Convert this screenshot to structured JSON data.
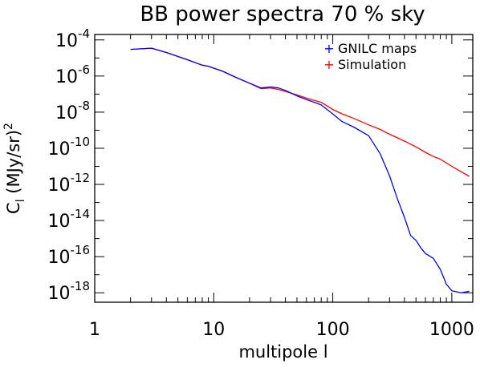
{
  "chart_data": {
    "type": "line",
    "title": "BB power spectra 70 % sky",
    "xlabel": "multipole l",
    "ylabel": "C_l (MJy/sr)^2",
    "x_scale": "log",
    "y_scale": "log",
    "xlim": [
      1,
      1500
    ],
    "ylim": [
      3e-19,
      0.0002
    ],
    "x_ticks": [
      {
        "value": 1,
        "label": "1"
      },
      {
        "value": 10,
        "label": "10"
      },
      {
        "value": 100,
        "label": "100"
      },
      {
        "value": 1000,
        "label": "1000"
      }
    ],
    "y_ticks": [
      {
        "value": 1e-18,
        "mantissa": "10",
        "exp": "-18"
      },
      {
        "value": 1e-16,
        "mantissa": "10",
        "exp": "-16"
      },
      {
        "value": 1e-14,
        "mantissa": "10",
        "exp": "-14"
      },
      {
        "value": 1e-12,
        "mantissa": "10",
        "exp": "-12"
      },
      {
        "value": 1e-10,
        "mantissa": "10",
        "exp": "-10"
      },
      {
        "value": 1e-08,
        "mantissa": "10",
        "exp": "-8"
      },
      {
        "value": 1e-06,
        "mantissa": "10",
        "exp": "-6"
      },
      {
        "value": 0.0001,
        "mantissa": "10",
        "exp": "-4"
      }
    ],
    "grid": false,
    "legend_position": "top-right",
    "series": [
      {
        "name": "GNILC maps",
        "color": "#0000ff",
        "x": [
          2,
          3,
          4,
          6,
          8,
          9,
          12,
          15,
          20,
          25,
          30,
          35,
          40,
          50,
          60,
          70,
          80,
          100,
          120,
          150,
          200,
          250,
          300,
          350,
          400,
          450,
          500,
          550,
          600,
          700,
          800,
          900,
          1000,
          1200,
          1400
        ],
        "y": [
          3e-05,
          3.5e-05,
          2e-05,
          8e-06,
          4e-06,
          3.5e-06,
          1.8e-06,
          9e-07,
          4e-07,
          2.2e-07,
          2.5e-07,
          2.2e-07,
          1.6e-07,
          8e-08,
          5e-08,
          3.5e-08,
          2.5e-08,
          8e-09,
          3e-09,
          1.5e-09,
          5e-10,
          5e-11,
          3e-12,
          1.5e-13,
          1.5e-14,
          1.5e-15,
          8e-16,
          3e-16,
          1.5e-16,
          8e-17,
          2e-17,
          3e-18,
          1.3e-18,
          1e-18,
          1.2e-18
        ]
      },
      {
        "name": "Simulation",
        "color": "#ff0000",
        "x": [
          2,
          3,
          4,
          6,
          8,
          9,
          12,
          15,
          20,
          25,
          30,
          35,
          40,
          50,
          60,
          70,
          80,
          100,
          120,
          150,
          200,
          250,
          300,
          400,
          500,
          600,
          700,
          800,
          1000,
          1200,
          1400
        ],
        "y": [
          3e-05,
          3.5e-05,
          2e-05,
          8e-06,
          4e-06,
          3.5e-06,
          1.8e-06,
          9e-07,
          4e-07,
          2e-07,
          2.2e-07,
          1.8e-07,
          1.4e-07,
          9e-08,
          6e-08,
          4.5e-08,
          3.5e-08,
          1.4e-08,
          8e-09,
          4.5e-09,
          2e-09,
          1.1e-09,
          6e-10,
          2.5e-10,
          1.2e-10,
          6e-11,
          3.5e-11,
          2.5e-11,
          1e-11,
          5e-12,
          2.8e-12
        ]
      }
    ]
  }
}
